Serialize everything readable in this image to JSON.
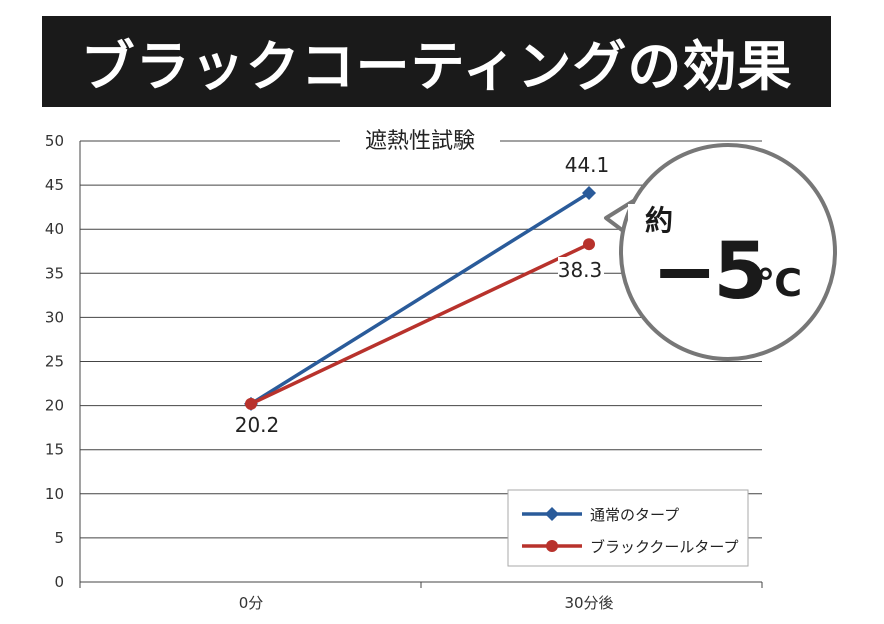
{
  "header": {
    "title": "ブラックコーティングの効果"
  },
  "callout": {
    "prefix": "約",
    "value": "−5",
    "unit": "℃"
  },
  "chart_data": {
    "type": "line",
    "title": "遮熱性試験",
    "categories": [
      "0分",
      "30分後"
    ],
    "ylim": [
      0,
      50
    ],
    "yticks": [
      0,
      5,
      10,
      15,
      20,
      25,
      30,
      35,
      40,
      45,
      50
    ],
    "grid": true,
    "legend": "bottom-right",
    "series": [
      {
        "name": "通常のタープ",
        "values": [
          20.2,
          44.1
        ],
        "color": "#2a5b9a",
        "marker": "diamond",
        "labels": [
          "20.2",
          "44.1"
        ]
      },
      {
        "name": "ブラッククールタープ",
        "values": [
          20.2,
          38.3
        ],
        "color": "#b8322c",
        "marker": "circle",
        "labels": [
          "",
          "38.3"
        ]
      }
    ]
  }
}
